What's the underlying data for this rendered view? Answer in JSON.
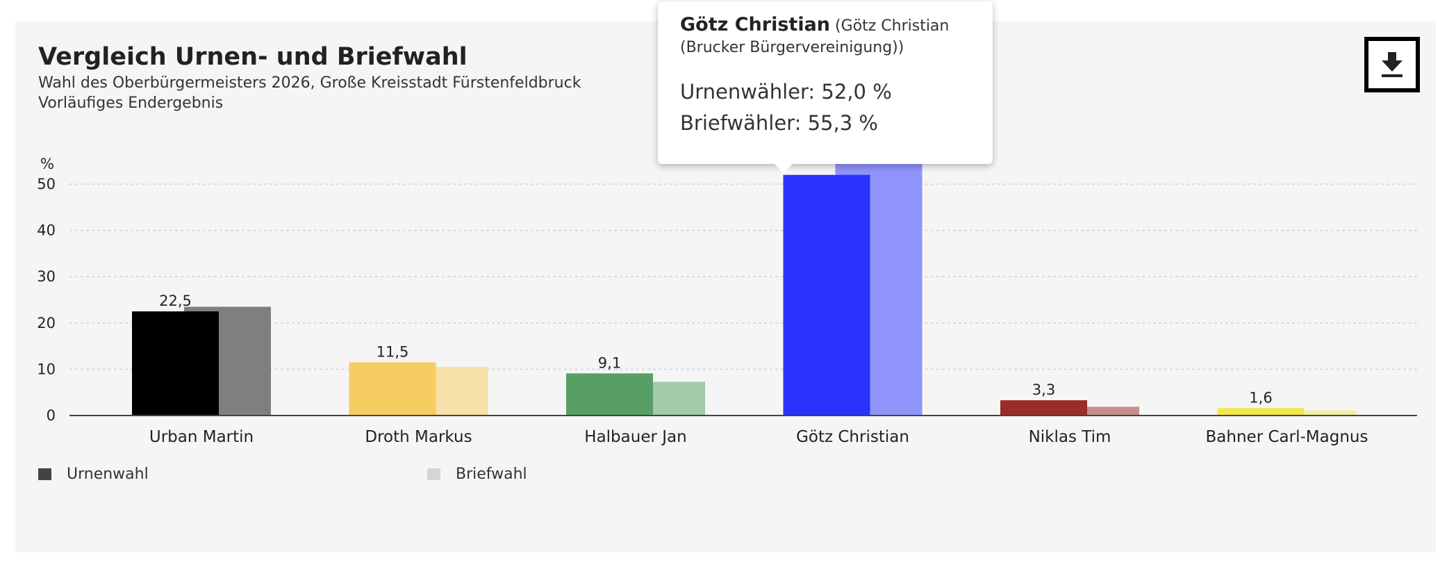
{
  "header": {
    "title": "Vergleich Urnen- und Briefwahl",
    "subtitle_line1": "Wahl des Oberbürgermeisters 2026, Große Kreisstadt Fürstenfeldbruck",
    "subtitle_line2": "Vorläufiges Endergebnis",
    "download_icon": "download-icon"
  },
  "chart_data": {
    "type": "bar",
    "ylabel": "%",
    "ylim": [
      0,
      55
    ],
    "yticks": [
      0,
      10,
      20,
      30,
      40,
      50
    ],
    "grid": true,
    "legend_placement": "bottom-left",
    "categories": [
      "Urban Martin",
      "Droth Markus",
      "Halbauer Jan",
      "Götz Christian",
      "Niklas Tim",
      "Bahner Carl-Magnus"
    ],
    "series": [
      {
        "name": "Urnenwahl",
        "values": [
          22.5,
          11.5,
          9.1,
          52.0,
          3.3,
          1.6
        ],
        "labels": [
          "22,5",
          "11,5",
          "9,1",
          "",
          "3,3",
          "1,6"
        ]
      },
      {
        "name": "Briefwahl",
        "values": [
          23.5,
          10.5,
          7.3,
          55.3,
          1.9,
          1.1
        ]
      }
    ],
    "colors_urne": [
      "#000000",
      "#f6cd62",
      "#579f65",
      "#2a33fb",
      "#9b2c2a",
      "#f2e84a"
    ],
    "colors_brief": [
      "#7f7f7f",
      "#f7e1a9",
      "#a4cbab",
      "#8f94fb",
      "#c58f8e",
      "#f4f0a5"
    ]
  },
  "legend": {
    "urne_label": "Urnenwahl",
    "urne_color": "#444444",
    "brief_label": "Briefwahl",
    "brief_color": "#d5d5d5"
  },
  "tooltip": {
    "name": "Götz Christian",
    "detail_line1": "(Götz Christian",
    "detail_line2": "(Brucker Bürgervereinigung))",
    "urne_text": "Urnenwähler: 52,0 %",
    "brief_text": "Briefwähler: 55,3 %"
  }
}
